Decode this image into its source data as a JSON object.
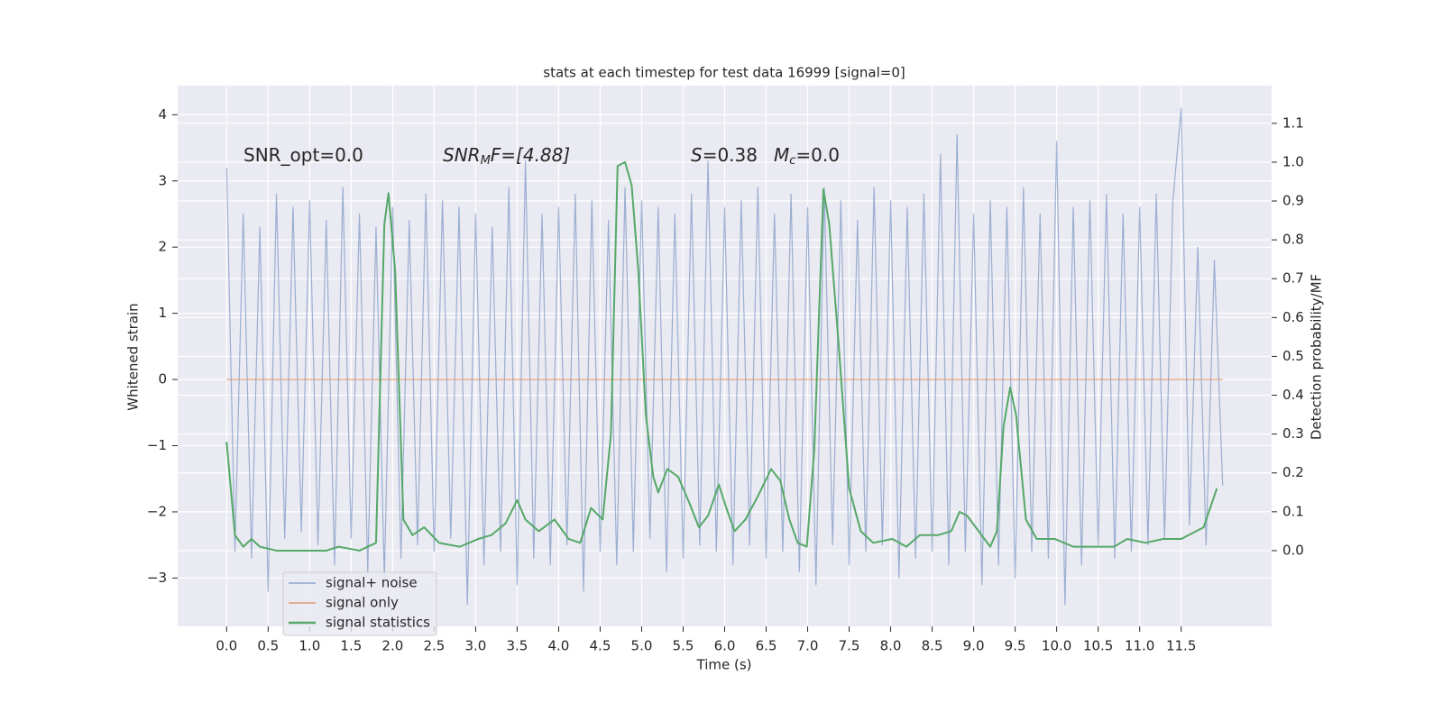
{
  "chart_data": {
    "type": "line",
    "title": "stats at each timestep for test data 16999 [signal=0]",
    "xlabel": "Time (s)",
    "ylabel": "Whitened strain",
    "y2label": "Detection probability/MF",
    "annotations": [
      [
        "SNR_opt=0.0"
      ],
      [
        "SNR",
        "M",
        "F=[4.88]"
      ],
      [
        "S",
        "=0.38"
      ],
      [
        "M",
        "c",
        "=0.0"
      ]
    ],
    "xlim": [
      -0.59,
      12.59
    ],
    "ylim": [
      -3.73,
      4.44
    ],
    "y2lim": [
      -0.195,
      1.197
    ],
    "xticks": [
      {
        "value": 0,
        "label": "0.0"
      },
      0.5,
      {
        "value": 1,
        "label": "1.0"
      },
      1.5,
      {
        "value": 2,
        "label": "2.0"
      },
      2.5,
      {
        "value": 3,
        "label": "3.0"
      },
      3.5,
      {
        "value": 4,
        "label": "4.0"
      },
      4.5,
      {
        "value": 5,
        "label": "5.0"
      },
      5.5,
      {
        "value": 6,
        "label": "6.0"
      },
      6.5,
      {
        "value": 7,
        "label": "7.0"
      },
      7.5,
      {
        "value": 8,
        "label": "8.0"
      },
      8.5,
      {
        "value": 9,
        "label": "9.0"
      },
      9.5,
      {
        "value": 10,
        "label": "10.0"
      },
      10.5,
      {
        "value": 11,
        "label": "11.0"
      },
      11.5
    ],
    "yticks": [
      {
        "value": -3,
        "label": "−3"
      },
      {
        "value": -2,
        "label": "−2"
      },
      {
        "value": -1,
        "label": "−1"
      },
      0,
      1,
      2,
      3,
      4
    ],
    "y2ticks": [
      {
        "value": 0,
        "label": "0.0"
      },
      0.1,
      0.2,
      0.3,
      0.4,
      0.5,
      0.6,
      0.7,
      0.8,
      0.9,
      {
        "value": 1,
        "label": "1.0"
      },
      1.1
    ],
    "grid": true,
    "legend": "lower left",
    "series": [
      {
        "name": "signal+ noise",
        "color": "#4c72b0",
        "x": [
          0.0,
          0.1,
          0.2,
          0.3,
          0.4,
          0.5,
          0.6,
          0.7,
          0.8,
          0.9,
          1.0,
          1.1,
          1.2,
          1.3,
          1.4,
          1.5,
          1.6,
          1.7,
          1.8,
          1.9,
          2.0,
          2.1,
          2.2,
          2.3,
          2.4,
          2.5,
          2.6,
          2.7,
          2.8,
          2.9,
          3.0,
          3.1,
          3.2,
          3.3,
          3.4,
          3.5,
          3.6,
          3.7,
          3.8,
          3.9,
          4.0,
          4.1,
          4.2,
          4.3,
          4.4,
          4.5,
          4.6,
          4.7,
          4.8,
          4.9,
          5.0,
          5.1,
          5.2,
          5.3,
          5.4,
          5.5,
          5.6,
          5.7,
          5.8,
          5.9,
          6.0,
          6.1,
          6.2,
          6.3,
          6.4,
          6.5,
          6.6,
          6.7,
          6.8,
          6.9,
          7.0,
          7.1,
          7.2,
          7.3,
          7.4,
          7.5,
          7.6,
          7.7,
          7.8,
          7.9,
          8.0,
          8.1,
          8.2,
          8.3,
          8.4,
          8.5,
          8.6,
          8.7,
          8.8,
          8.9,
          9.0,
          9.1,
          9.2,
          9.3,
          9.4,
          9.5,
          9.6,
          9.7,
          9.8,
          9.9,
          10.0,
          10.1,
          10.2,
          10.3,
          10.4,
          10.5,
          10.6,
          10.7,
          10.8,
          10.9,
          11.0,
          11.1,
          11.2,
          11.3,
          11.4,
          11.5,
          11.6,
          11.7,
          11.8,
          11.9,
          12.0
        ],
        "values": [
          3.2,
          -2.6,
          2.5,
          -2.7,
          2.3,
          -3.2,
          2.8,
          -2.4,
          2.6,
          -2.3,
          2.7,
          -2.5,
          2.4,
          -2.8,
          2.9,
          -2.4,
          2.5,
          -2.9,
          2.3,
          -3.0,
          2.6,
          -2.7,
          2.4,
          -2.5,
          2.8,
          -2.6,
          2.7,
          -2.4,
          2.6,
          -3.4,
          2.5,
          -2.8,
          2.3,
          -2.6,
          2.9,
          -3.1,
          3.3,
          -2.7,
          2.5,
          -2.8,
          2.6,
          -2.5,
          2.8,
          -3.2,
          2.7,
          -2.6,
          2.4,
          -2.8,
          2.9,
          -2.6,
          2.7,
          -2.4,
          2.6,
          -2.9,
          2.5,
          -2.7,
          2.8,
          -2.5,
          3.3,
          -2.6,
          2.6,
          -2.8,
          2.7,
          -2.5,
          2.9,
          -2.7,
          2.5,
          -2.6,
          2.8,
          -2.9,
          2.6,
          -3.1,
          2.9,
          -2.5,
          2.7,
          -2.8,
          2.4,
          -2.6,
          2.9,
          -2.5,
          2.7,
          -3.0,
          2.6,
          -2.7,
          2.8,
          -2.6,
          3.4,
          -2.8,
          3.7,
          -2.6,
          2.5,
          -3.1,
          2.7,
          -2.8,
          2.6,
          -3.0,
          2.9,
          -2.6,
          2.5,
          -2.7,
          3.6,
          -3.4,
          2.6,
          -2.8,
          2.7,
          -2.5,
          2.8,
          -2.7,
          2.5,
          -2.6,
          2.6,
          -2.5,
          2.8,
          -2.4,
          2.7,
          4.1,
          -2.2,
          2.0,
          -2.5,
          1.8,
          -1.6
        ]
      },
      {
        "name": "signal only",
        "color": "#dd8452",
        "x": [
          0,
          12.0
        ],
        "values": [
          0,
          0
        ]
      },
      {
        "name": "signal statistics",
        "color": "#55a868",
        "axis": "y2",
        "x": [
          0,
          0.1,
          0.2,
          0.3,
          0.4,
          0.6,
          0.85,
          1.2,
          1.35,
          1.6,
          1.8,
          1.9,
          1.95,
          2.03,
          2.13,
          2.24,
          2.38,
          2.56,
          2.81,
          3.03,
          3.19,
          3.36,
          3.5,
          3.6,
          3.76,
          3.95,
          4.12,
          4.26,
          4.39,
          4.53,
          4.63,
          4.71,
          4.8,
          4.88,
          4.96,
          5.05,
          5.14,
          5.2,
          5.31,
          5.44,
          5.58,
          5.69,
          5.8,
          5.93,
          6.02,
          6.12,
          6.25,
          6.4,
          6.56,
          6.67,
          6.78,
          6.88,
          6.99,
          7.08,
          7.19,
          7.26,
          7.37,
          7.5,
          7.64,
          7.79,
          8.02,
          8.19,
          8.35,
          8.57,
          8.73,
          8.83,
          8.92,
          9.06,
          9.2,
          9.28,
          9.36,
          9.44,
          9.51,
          9.63,
          9.76,
          9.98,
          10.2,
          10.47,
          10.69,
          10.85,
          11.07,
          11.28,
          11.5,
          11.77,
          11.93
        ],
        "values": [
          0.28,
          0.04,
          0.01,
          0.03,
          0.01,
          0.0,
          0.0,
          0.0,
          0.01,
          0.0,
          0.02,
          0.84,
          0.92,
          0.72,
          0.08,
          0.04,
          0.06,
          0.02,
          0.01,
          0.03,
          0.04,
          0.07,
          0.13,
          0.08,
          0.05,
          0.08,
          0.03,
          0.02,
          0.11,
          0.08,
          0.3,
          0.99,
          1.0,
          0.94,
          0.72,
          0.35,
          0.19,
          0.15,
          0.21,
          0.19,
          0.12,
          0.06,
          0.09,
          0.17,
          0.11,
          0.05,
          0.08,
          0.14,
          0.21,
          0.18,
          0.08,
          0.02,
          0.01,
          0.26,
          0.93,
          0.84,
          0.54,
          0.16,
          0.05,
          0.02,
          0.03,
          0.01,
          0.04,
          0.04,
          0.05,
          0.1,
          0.09,
          0.05,
          0.01,
          0.05,
          0.32,
          0.42,
          0.35,
          0.08,
          0.03,
          0.03,
          0.01,
          0.01,
          0.01,
          0.03,
          0.02,
          0.03,
          0.03,
          0.06,
          0.16
        ]
      }
    ]
  }
}
